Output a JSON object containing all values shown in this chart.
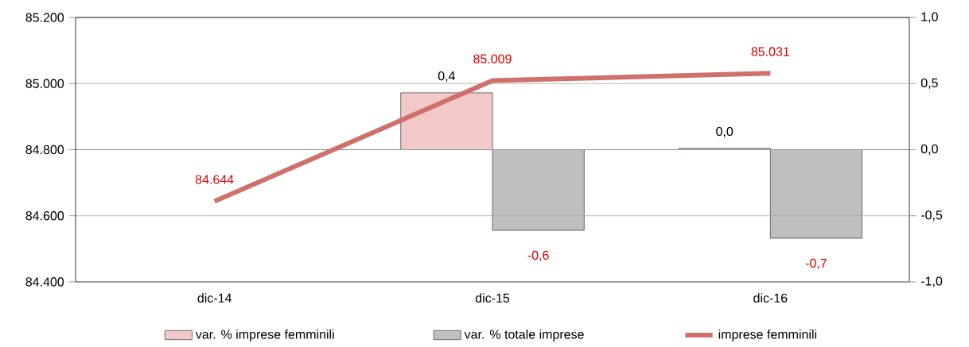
{
  "chart_data": {
    "type": "bar",
    "categories": [
      "dic-14",
      "dic-15",
      "dic-16"
    ],
    "series": [
      {
        "name": "var. % imprese femminili",
        "axis": "y2",
        "color": "#f2c9c8",
        "values": [
          null,
          0.43,
          0.01
        ],
        "value_labels": [
          null,
          "0,4",
          "0,0"
        ]
      },
      {
        "name": "var. % totale imprese",
        "axis": "y2",
        "color": "#bfbfbf",
        "values": [
          null,
          -0.61,
          -0.67
        ],
        "value_labels": [
          null,
          "-0,6",
          "-0,7"
        ]
      },
      {
        "name": "imprese femminili",
        "type": "line",
        "color": "#d0706b",
        "values": [
          84644,
          85009,
          85031
        ],
        "value_labels": [
          "84.644",
          "85.009",
          "85.031"
        ]
      }
    ],
    "ylim": [
      84400,
      85200
    ],
    "yticks": [
      {
        "value": 84400,
        "label": "84.400"
      },
      {
        "value": 84600,
        "label": "84.600"
      },
      {
        "value": 84800,
        "label": "84.800"
      },
      {
        "value": 85000,
        "label": "85.000"
      },
      {
        "value": 85200,
        "label": "85.200"
      }
    ],
    "y2lim": [
      -1,
      1
    ],
    "y2ticks": [
      {
        "value": -1,
        "label": "-1,0"
      },
      {
        "value": -0.5,
        "label": "-0,5"
      },
      {
        "value": 0,
        "label": "0,0"
      },
      {
        "value": 0.5,
        "label": "0,5"
      },
      {
        "value": 1,
        "label": "1,0"
      }
    ],
    "grid": "y",
    "legend": "bottom"
  }
}
